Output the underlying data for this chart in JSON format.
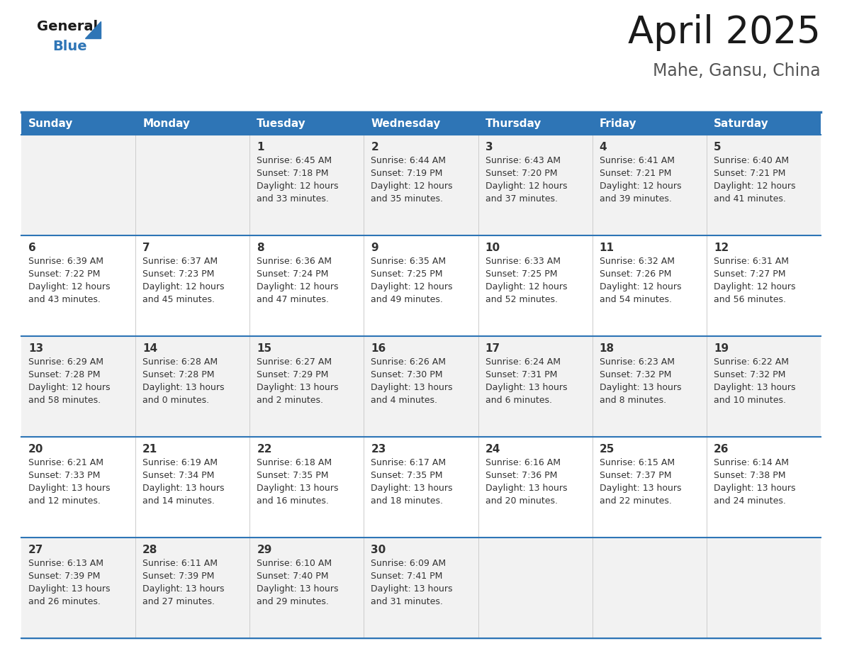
{
  "title": "April 2025",
  "subtitle": "Mahe, Gansu, China",
  "days_of_week": [
    "Sunday",
    "Monday",
    "Tuesday",
    "Wednesday",
    "Thursday",
    "Friday",
    "Saturday"
  ],
  "header_bg": "#2E75B6",
  "header_text": "#FFFFFF",
  "row_bg_even": "#F2F2F2",
  "row_bg_odd": "#FFFFFF",
  "cell_text_color": "#333333",
  "separator_color": "#2E75B6",
  "title_color": "#1a1a1a",
  "subtitle_color": "#555555",
  "logo_black": "#1a1a1a",
  "logo_blue": "#2E75B6",
  "calendar_data": [
    [
      {
        "day": null,
        "sunrise": null,
        "sunset": null,
        "daylight_line1": null,
        "daylight_line2": null
      },
      {
        "day": null,
        "sunrise": null,
        "sunset": null,
        "daylight_line1": null,
        "daylight_line2": null
      },
      {
        "day": "1",
        "sunrise": "6:45 AM",
        "sunset": "7:18 PM",
        "daylight_line1": "12 hours",
        "daylight_line2": "and 33 minutes."
      },
      {
        "day": "2",
        "sunrise": "6:44 AM",
        "sunset": "7:19 PM",
        "daylight_line1": "12 hours",
        "daylight_line2": "and 35 minutes."
      },
      {
        "day": "3",
        "sunrise": "6:43 AM",
        "sunset": "7:20 PM",
        "daylight_line1": "12 hours",
        "daylight_line2": "and 37 minutes."
      },
      {
        "day": "4",
        "sunrise": "6:41 AM",
        "sunset": "7:21 PM",
        "daylight_line1": "12 hours",
        "daylight_line2": "and 39 minutes."
      },
      {
        "day": "5",
        "sunrise": "6:40 AM",
        "sunset": "7:21 PM",
        "daylight_line1": "12 hours",
        "daylight_line2": "and 41 minutes."
      }
    ],
    [
      {
        "day": "6",
        "sunrise": "6:39 AM",
        "sunset": "7:22 PM",
        "daylight_line1": "12 hours",
        "daylight_line2": "and 43 minutes."
      },
      {
        "day": "7",
        "sunrise": "6:37 AM",
        "sunset": "7:23 PM",
        "daylight_line1": "12 hours",
        "daylight_line2": "and 45 minutes."
      },
      {
        "day": "8",
        "sunrise": "6:36 AM",
        "sunset": "7:24 PM",
        "daylight_line1": "12 hours",
        "daylight_line2": "and 47 minutes."
      },
      {
        "day": "9",
        "sunrise": "6:35 AM",
        "sunset": "7:25 PM",
        "daylight_line1": "12 hours",
        "daylight_line2": "and 49 minutes."
      },
      {
        "day": "10",
        "sunrise": "6:33 AM",
        "sunset": "7:25 PM",
        "daylight_line1": "12 hours",
        "daylight_line2": "and 52 minutes."
      },
      {
        "day": "11",
        "sunrise": "6:32 AM",
        "sunset": "7:26 PM",
        "daylight_line1": "12 hours",
        "daylight_line2": "and 54 minutes."
      },
      {
        "day": "12",
        "sunrise": "6:31 AM",
        "sunset": "7:27 PM",
        "daylight_line1": "12 hours",
        "daylight_line2": "and 56 minutes."
      }
    ],
    [
      {
        "day": "13",
        "sunrise": "6:29 AM",
        "sunset": "7:28 PM",
        "daylight_line1": "12 hours",
        "daylight_line2": "and 58 minutes."
      },
      {
        "day": "14",
        "sunrise": "6:28 AM",
        "sunset": "7:28 PM",
        "daylight_line1": "13 hours",
        "daylight_line2": "and 0 minutes."
      },
      {
        "day": "15",
        "sunrise": "6:27 AM",
        "sunset": "7:29 PM",
        "daylight_line1": "13 hours",
        "daylight_line2": "and 2 minutes."
      },
      {
        "day": "16",
        "sunrise": "6:26 AM",
        "sunset": "7:30 PM",
        "daylight_line1": "13 hours",
        "daylight_line2": "and 4 minutes."
      },
      {
        "day": "17",
        "sunrise": "6:24 AM",
        "sunset": "7:31 PM",
        "daylight_line1": "13 hours",
        "daylight_line2": "and 6 minutes."
      },
      {
        "day": "18",
        "sunrise": "6:23 AM",
        "sunset": "7:32 PM",
        "daylight_line1": "13 hours",
        "daylight_line2": "and 8 minutes."
      },
      {
        "day": "19",
        "sunrise": "6:22 AM",
        "sunset": "7:32 PM",
        "daylight_line1": "13 hours",
        "daylight_line2": "and 10 minutes."
      }
    ],
    [
      {
        "day": "20",
        "sunrise": "6:21 AM",
        "sunset": "7:33 PM",
        "daylight_line1": "13 hours",
        "daylight_line2": "and 12 minutes."
      },
      {
        "day": "21",
        "sunrise": "6:19 AM",
        "sunset": "7:34 PM",
        "daylight_line1": "13 hours",
        "daylight_line2": "and 14 minutes."
      },
      {
        "day": "22",
        "sunrise": "6:18 AM",
        "sunset": "7:35 PM",
        "daylight_line1": "13 hours",
        "daylight_line2": "and 16 minutes."
      },
      {
        "day": "23",
        "sunrise": "6:17 AM",
        "sunset": "7:35 PM",
        "daylight_line1": "13 hours",
        "daylight_line2": "and 18 minutes."
      },
      {
        "day": "24",
        "sunrise": "6:16 AM",
        "sunset": "7:36 PM",
        "daylight_line1": "13 hours",
        "daylight_line2": "and 20 minutes."
      },
      {
        "day": "25",
        "sunrise": "6:15 AM",
        "sunset": "7:37 PM",
        "daylight_line1": "13 hours",
        "daylight_line2": "and 22 minutes."
      },
      {
        "day": "26",
        "sunrise": "6:14 AM",
        "sunset": "7:38 PM",
        "daylight_line1": "13 hours",
        "daylight_line2": "and 24 minutes."
      }
    ],
    [
      {
        "day": "27",
        "sunrise": "6:13 AM",
        "sunset": "7:39 PM",
        "daylight_line1": "13 hours",
        "daylight_line2": "and 26 minutes."
      },
      {
        "day": "28",
        "sunrise": "6:11 AM",
        "sunset": "7:39 PM",
        "daylight_line1": "13 hours",
        "daylight_line2": "and 27 minutes."
      },
      {
        "day": "29",
        "sunrise": "6:10 AM",
        "sunset": "7:40 PM",
        "daylight_line1": "13 hours",
        "daylight_line2": "and 29 minutes."
      },
      {
        "day": "30",
        "sunrise": "6:09 AM",
        "sunset": "7:41 PM",
        "daylight_line1": "13 hours",
        "daylight_line2": "and 31 minutes."
      },
      {
        "day": null,
        "sunrise": null,
        "sunset": null,
        "daylight_line1": null,
        "daylight_line2": null
      },
      {
        "day": null,
        "sunrise": null,
        "sunset": null,
        "daylight_line1": null,
        "daylight_line2": null
      },
      {
        "day": null,
        "sunrise": null,
        "sunset": null,
        "daylight_line1": null,
        "daylight_line2": null
      }
    ]
  ]
}
